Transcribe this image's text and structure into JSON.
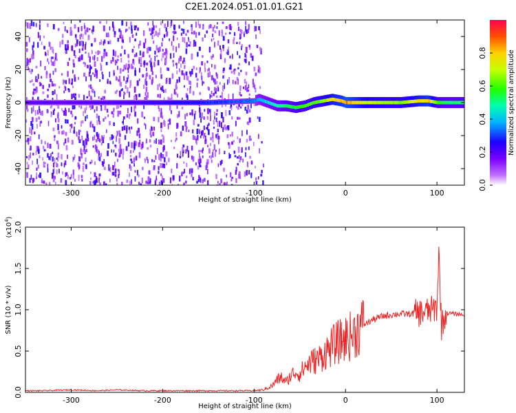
{
  "title": "C2E1.2024.051.01.01.G21",
  "chart_data": [
    {
      "type": "heatmap",
      "xlabel": "Height of straight line (km)",
      "ylabel": "Frequency (Hz)",
      "xlim": [
        -350,
        130
      ],
      "ylim": [
        -50,
        50
      ],
      "xticks": [
        -300,
        -200,
        -100,
        0,
        100
      ],
      "yticks": [
        -40,
        -20,
        0,
        20,
        40
      ],
      "xtick_labels": [
        "-300",
        "-200",
        "-100",
        "0",
        "100"
      ],
      "ytick_labels": [
        "-40",
        "-20",
        "0",
        "20",
        "40"
      ],
      "grid": false,
      "colorbar": {
        "label": "Normalized spectral amplitude",
        "range": [
          0,
          1
        ],
        "ticks": [
          0.0,
          0.2,
          0.4,
          0.6,
          0.8
        ],
        "tick_labels": [
          "0.0",
          "0.2",
          "0.4",
          "0.6",
          "0.8"
        ],
        "colors": [
          "#ffffff",
          "#9b00ff",
          "#2000ff",
          "#00c0ff",
          "#00ff60",
          "#a0ff00",
          "#ffff00",
          "#ff8000",
          "#ff0040"
        ]
      },
      "signal_track": {
        "x": [
          -350,
          -300,
          -250,
          -200,
          -150,
          -100,
          -95,
          -85,
          -75,
          -65,
          -55,
          -45,
          -35,
          -25,
          -15,
          -5,
          0,
          20,
          40,
          60,
          80,
          90,
          100,
          110,
          130
        ],
        "freq": [
          0,
          0,
          0,
          0,
          0,
          1,
          2,
          0,
          -2,
          -2,
          -3,
          -2,
          0,
          1,
          2,
          1,
          0,
          0,
          0,
          0,
          1,
          1,
          0,
          0,
          0
        ],
        "amplitude": [
          0.2,
          0.2,
          0.22,
          0.25,
          0.3,
          0.35,
          0.4,
          0.45,
          0.5,
          0.55,
          0.6,
          0.62,
          0.65,
          0.7,
          0.8,
          0.85,
          0.9,
          0.75,
          0.7,
          0.68,
          0.8,
          0.85,
          0.6,
          0.55,
          0.55
        ]
      },
      "noise_region": {
        "x": [
          -350,
          -90
        ],
        "density": "high"
      }
    },
    {
      "type": "line",
      "xlabel": "Height of straight line (km)",
      "ylabel": "SNR (10 * v/v)",
      "yscale_label": "(x10^4)",
      "xlim": [
        -350,
        130
      ],
      "ylim": [
        0.0,
        2.0
      ],
      "xticks": [
        -300,
        -200,
        -100,
        0,
        100
      ],
      "yticks": [
        0.0,
        0.5,
        1.0,
        1.5,
        2.0
      ],
      "xtick_labels": [
        "-300",
        "-200",
        "-100",
        "0",
        "100"
      ],
      "ytick_labels": [
        "0.0",
        "0.5",
        "1.0",
        "1.5",
        "2.0"
      ],
      "grid": false,
      "series": [
        {
          "color": "#ee2222",
          "x": [
            -350,
            -330,
            -300,
            -270,
            -250,
            -220,
            -200,
            -170,
            -150,
            -120,
            -100,
            -90,
            -80,
            -75,
            -70,
            -65,
            -60,
            -55,
            -50,
            -45,
            -40,
            -35,
            -30,
            -25,
            -20,
            -15,
            -10,
            -5,
            0,
            5,
            10,
            15,
            20,
            30,
            40,
            50,
            60,
            70,
            80,
            85,
            90,
            95,
            100,
            102,
            105,
            110,
            120,
            130
          ],
          "values": [
            0.02,
            0.02,
            0.03,
            0.02,
            0.03,
            0.02,
            0.02,
            0.02,
            0.02,
            0.02,
            0.02,
            0.03,
            0.08,
            0.15,
            0.18,
            0.12,
            0.2,
            0.25,
            0.22,
            0.3,
            0.35,
            0.38,
            0.4,
            0.45,
            0.5,
            0.55,
            0.6,
            0.62,
            0.65,
            0.68,
            0.72,
            0.78,
            0.82,
            0.88,
            0.92,
            0.94,
            0.95,
            0.95,
            0.96,
            0.97,
            0.98,
            1.0,
            1.02,
            1.7,
            0.8,
            0.96,
            0.95,
            0.94
          ]
        }
      ]
    }
  ]
}
